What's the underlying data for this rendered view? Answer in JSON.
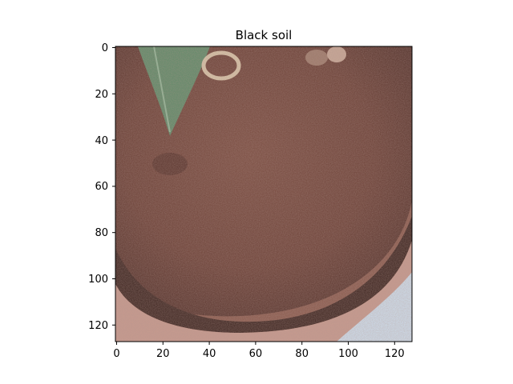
{
  "figure": {
    "title": "Black soil"
  },
  "image_axes": {
    "x_ticks": [
      0,
      20,
      40,
      60,
      80,
      100,
      120
    ],
    "y_ticks": [
      0,
      20,
      40,
      60,
      80,
      100,
      120
    ],
    "x_range": [
      -0.5,
      127.5
    ],
    "y_range": [
      127.5,
      -0.5
    ],
    "y_inverted": true
  },
  "image": {
    "description_colors": {
      "soil_base": "#6e4438",
      "soil_dark": "#3d2520",
      "soil_light": "#a77569",
      "pot_rim": "#c79a8e",
      "leaf": "#5e8a68",
      "background_blue": "#cfdfee"
    }
  }
}
